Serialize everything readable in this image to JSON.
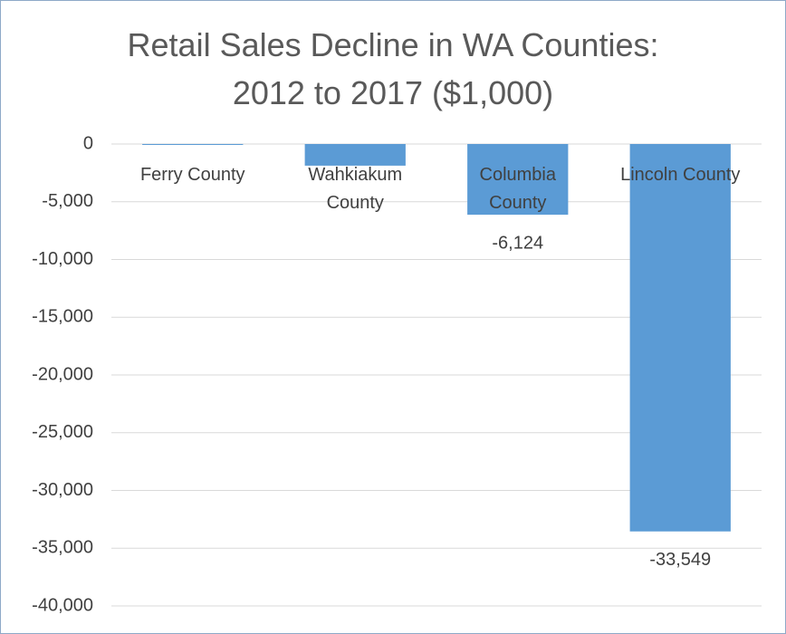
{
  "chart_data": {
    "type": "bar",
    "title": "Retail Sales Decline in WA Counties: 2012 to 2017 ($1,000)",
    "categories": [
      "Ferry County",
      "Wahkiakum County",
      "Columbia County",
      "Lincoln County"
    ],
    "values": [
      -50,
      -1875,
      -6124,
      -33549
    ],
    "value_labels": [
      null,
      null,
      "-6,124",
      "-33,549"
    ],
    "color": "#5b9bd5",
    "ylim": [
      -40000,
      0
    ],
    "yticks": [
      {
        "value": -40000,
        "label": "-40,000"
      },
      {
        "value": -35000,
        "label": "-35,000"
      },
      {
        "value": -30000,
        "label": "-30,000"
      },
      {
        "value": -25000,
        "label": "-25,000"
      },
      {
        "value": -20000,
        "label": "-20,000"
      },
      {
        "value": -15000,
        "label": "-15,000"
      },
      {
        "value": -10000,
        "label": "-10,000"
      },
      {
        "value": -5000,
        "label": "-5,000"
      },
      0
    ],
    "grid": true
  }
}
